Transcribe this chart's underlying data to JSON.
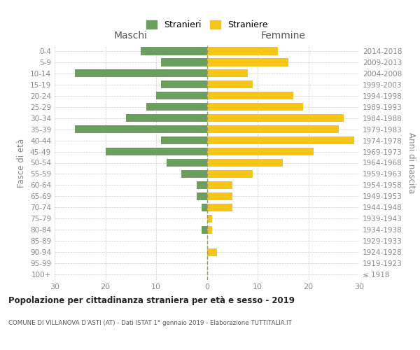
{
  "age_groups": [
    "100+",
    "95-99",
    "90-94",
    "85-89",
    "80-84",
    "75-79",
    "70-74",
    "65-69",
    "60-64",
    "55-59",
    "50-54",
    "45-49",
    "40-44",
    "35-39",
    "30-34",
    "25-29",
    "20-24",
    "15-19",
    "10-14",
    "5-9",
    "0-4"
  ],
  "birth_years": [
    "≤ 1918",
    "1919-1923",
    "1924-1928",
    "1929-1933",
    "1934-1938",
    "1939-1943",
    "1944-1948",
    "1949-1953",
    "1954-1958",
    "1959-1963",
    "1964-1968",
    "1969-1973",
    "1974-1978",
    "1979-1983",
    "1984-1988",
    "1989-1993",
    "1994-1998",
    "1999-2003",
    "2004-2008",
    "2009-2013",
    "2014-2018"
  ],
  "males": [
    0,
    0,
    0,
    0,
    1,
    0,
    1,
    2,
    2,
    5,
    8,
    20,
    9,
    26,
    16,
    12,
    10,
    9,
    26,
    9,
    13
  ],
  "females": [
    0,
    0,
    2,
    0,
    1,
    1,
    5,
    5,
    5,
    9,
    15,
    21,
    29,
    26,
    27,
    19,
    17,
    9,
    8,
    16,
    14
  ],
  "male_color": "#6a9f5e",
  "female_color": "#f5c518",
  "grid_color": "#cccccc",
  "bg_color": "#ffffff",
  "title": "Popolazione per cittadinanza straniera per età e sesso - 2019",
  "subtitle": "COMUNE DI VILLANOVA D'ASTI (AT) - Dati ISTAT 1° gennaio 2019 - Elaborazione TUTTITALIA.IT",
  "ylabel_left": "Fasce di età",
  "ylabel_right": "Anni di nascita",
  "xlabel_male": "Maschi",
  "xlabel_female": "Femmine",
  "legend_male": "Stranieri",
  "legend_female": "Straniere",
  "xlim": 30,
  "xticks": [
    -30,
    -20,
    -10,
    0,
    10,
    20,
    30
  ]
}
